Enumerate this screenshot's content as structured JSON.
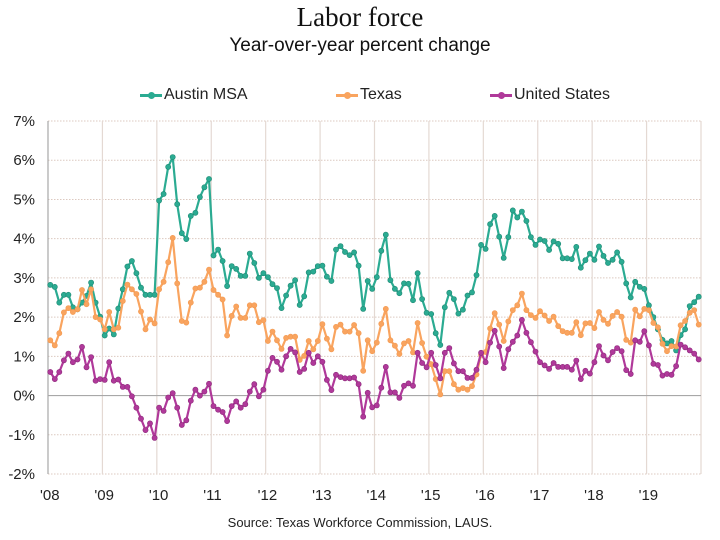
{
  "chart_data": {
    "type": "line",
    "title": "Labor force",
    "subtitle": "Year-over-year percent change",
    "xlabel": "",
    "ylabel": "",
    "ylim": [
      -2,
      7
    ],
    "y_ticks": [
      -2,
      -1,
      0,
      1,
      2,
      3,
      4,
      5,
      6,
      7
    ],
    "y_tick_labels": [
      "-2%",
      "-1%",
      "0%",
      "1%",
      "2%",
      "3%",
      "4%",
      "5%",
      "6%",
      "7%"
    ],
    "x_tick_labels": [
      "'08",
      "'09",
      "'10",
      "'11",
      "'12",
      "'13",
      "'14",
      "'15",
      "'16",
      "'17",
      "'18",
      "'19"
    ],
    "x_frequency": "monthly",
    "x_start": "Jan 2008",
    "x_end": "Dec 2019",
    "grid": true,
    "legend_position": "top-center",
    "source": "Source:  Texas Workforce Commission, LAUS.",
    "series": [
      {
        "name": "Austin MSA",
        "color": "#2bab92",
        "values": [
          2.82,
          2.77,
          2.37,
          2.57,
          2.57,
          2.25,
          2.2,
          2.37,
          2.54,
          2.88,
          2.37,
          2.01,
          1.53,
          1.71,
          1.56,
          2.22,
          2.71,
          3.29,
          3.43,
          3.12,
          2.75,
          2.57,
          2.57,
          2.57,
          4.97,
          5.14,
          5.83,
          6.08,
          4.88,
          4.14,
          3.99,
          4.58,
          4.66,
          5.06,
          5.31,
          5.52,
          3.57,
          3.72,
          3.43,
          2.79,
          3.3,
          3.23,
          3.05,
          3.05,
          3.62,
          3.38,
          3.0,
          3.12,
          3.02,
          2.84,
          2.74,
          2.23,
          2.55,
          2.8,
          2.94,
          2.31,
          2.53,
          3.14,
          3.16,
          3.3,
          3.31,
          3.03,
          2.92,
          3.72,
          3.81,
          3.66,
          3.58,
          3.65,
          3.31,
          2.21,
          2.92,
          2.72,
          3.02,
          3.69,
          4.1,
          2.94,
          2.72,
          2.61,
          2.86,
          2.85,
          2.43,
          3.12,
          2.46,
          2.11,
          2.08,
          1.59,
          1.29,
          2.25,
          2.62,
          2.46,
          2.09,
          2.19,
          2.55,
          2.63,
          3.07,
          3.84,
          3.74,
          4.37,
          4.58,
          4.05,
          3.51,
          4.04,
          4.72,
          4.54,
          4.69,
          4.45,
          4.04,
          3.84,
          3.98,
          3.94,
          3.71,
          3.93,
          3.87,
          3.5,
          3.5,
          3.48,
          3.79,
          3.26,
          3.45,
          3.62,
          3.46,
          3.8,
          3.56,
          3.38,
          3.46,
          3.65,
          3.41,
          2.86,
          2.5,
          2.9,
          2.77,
          2.72,
          2.3,
          2.0,
          1.69,
          1.42,
          1.33,
          1.39,
          1.15,
          1.54,
          1.69,
          2.28,
          2.38,
          2.52
        ]
      },
      {
        "name": "Texas",
        "color": "#f9a45f",
        "values": [
          1.41,
          1.28,
          1.59,
          2.12,
          2.23,
          2.13,
          2.2,
          2.69,
          2.33,
          2.71,
          2.0,
          1.94,
          1.69,
          2.13,
          1.69,
          1.73,
          2.41,
          2.83,
          2.71,
          2.59,
          2.14,
          1.69,
          1.94,
          1.84,
          2.71,
          2.9,
          3.4,
          4.02,
          2.86,
          1.9,
          1.86,
          2.37,
          2.73,
          2.75,
          2.9,
          3.21,
          2.69,
          2.57,
          2.45,
          1.53,
          2.03,
          2.27,
          1.98,
          1.98,
          2.3,
          2.3,
          1.87,
          1.92,
          1.39,
          1.63,
          1.41,
          1.19,
          1.47,
          1.5,
          1.5,
          0.91,
          1.01,
          1.39,
          1.18,
          1.39,
          1.82,
          1.45,
          1.18,
          1.75,
          1.81,
          1.63,
          1.63,
          1.8,
          1.59,
          0.63,
          1.41,
          1.13,
          1.35,
          1.83,
          2.21,
          1.41,
          1.27,
          1.06,
          1.33,
          1.39,
          1.1,
          1.85,
          1.34,
          0.99,
          0.8,
          0.42,
          0.03,
          0.62,
          0.62,
          0.29,
          0.15,
          0.19,
          0.15,
          0.24,
          0.54,
          1.04,
          1.11,
          1.71,
          2.1,
          1.81,
          1.39,
          1.89,
          2.18,
          2.3,
          2.6,
          2.18,
          2.05,
          1.98,
          2.15,
          2.04,
          1.9,
          2.01,
          1.77,
          1.64,
          1.6,
          1.6,
          1.87,
          1.54,
          1.84,
          1.85,
          1.72,
          2.13,
          1.93,
          1.83,
          2.03,
          2.13,
          2.01,
          1.42,
          1.35,
          2.19,
          2.02,
          2.21,
          2.18,
          1.85,
          1.74,
          1.32,
          1.13,
          1.26,
          1.25,
          1.79,
          1.9,
          2.11,
          2.18,
          1.81
        ]
      },
      {
        "name": "United States",
        "color": "#b0399a",
        "values": [
          0.6,
          0.42,
          0.6,
          0.9,
          1.07,
          0.85,
          0.92,
          1.24,
          0.72,
          0.98,
          0.38,
          0.42,
          0.4,
          0.85,
          0.38,
          0.41,
          0.22,
          0.22,
          -0.02,
          -0.31,
          -0.59,
          -0.88,
          -0.71,
          -1.08,
          -0.31,
          -0.39,
          -0.05,
          0.06,
          -0.31,
          -0.75,
          -0.63,
          -0.13,
          0.15,
          0.0,
          0.1,
          0.3,
          -0.27,
          -0.36,
          -0.42,
          -0.65,
          -0.27,
          -0.15,
          -0.31,
          -0.22,
          0.1,
          0.29,
          -0.02,
          0.15,
          0.63,
          0.96,
          0.86,
          0.66,
          1.0,
          1.19,
          1.1,
          0.6,
          0.68,
          1.09,
          0.83,
          1.0,
          0.86,
          0.4,
          0.14,
          0.53,
          0.47,
          0.44,
          0.44,
          0.46,
          0.29,
          -0.54,
          0.07,
          -0.3,
          -0.25,
          0.2,
          0.73,
          0.08,
          0.08,
          -0.06,
          0.25,
          0.31,
          0.25,
          1.09,
          0.83,
          0.72,
          1.09,
          0.78,
          0.44,
          1.09,
          1.21,
          0.82,
          0.62,
          0.62,
          0.45,
          0.45,
          0.66,
          1.09,
          0.85,
          1.35,
          1.65,
          1.25,
          0.7,
          1.18,
          1.37,
          1.53,
          1.93,
          1.6,
          1.36,
          1.12,
          0.85,
          0.77,
          0.68,
          0.83,
          0.73,
          0.73,
          0.73,
          0.66,
          0.89,
          0.42,
          0.63,
          0.56,
          0.85,
          1.26,
          1.02,
          0.9,
          1.11,
          1.21,
          1.13,
          0.65,
          0.55,
          1.41,
          1.37,
          1.64,
          1.28,
          0.81,
          0.78,
          0.51,
          0.55,
          0.53,
          0.75,
          1.3,
          1.23,
          1.15,
          1.07,
          0.92
        ]
      }
    ]
  }
}
